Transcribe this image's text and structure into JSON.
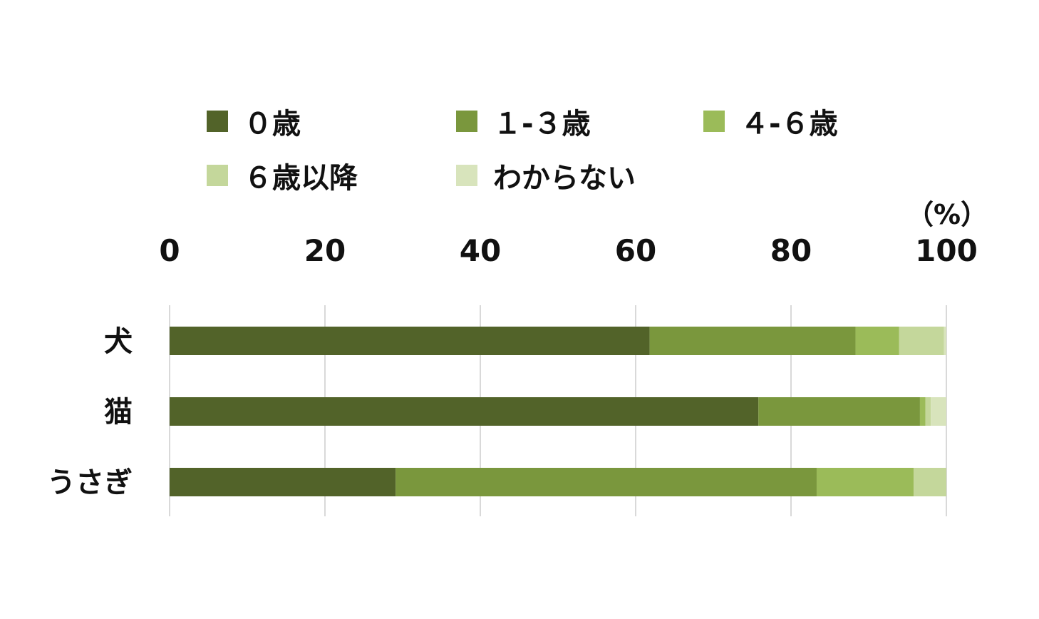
{
  "colors": {
    "series": [
      "#526329",
      "#7a973d",
      "#9bbb59",
      "#c4d79b",
      "#d8e4bc"
    ],
    "grid": "#d9d9d9"
  },
  "chart_data": {
    "type": "bar",
    "orientation": "horizontal",
    "stacked": true,
    "unit_label": "（%）",
    "categories": [
      "犬",
      "猫",
      "うさぎ"
    ],
    "series": [
      {
        "name": "０歳",
        "values": [
          61.8,
          75.8,
          29.1
        ]
      },
      {
        "name": "１-３歳",
        "values": [
          26.5,
          20.8,
          54.2
        ]
      },
      {
        "name": "４-６歳",
        "values": [
          5.6,
          0.7,
          12.5
        ]
      },
      {
        "name": "６歳以降",
        "values": [
          5.8,
          0.7,
          4.2
        ]
      },
      {
        "name": "わからない",
        "values": [
          0.3,
          2.0,
          0.0
        ]
      }
    ],
    "xlim": [
      0,
      100
    ],
    "xticks": [
      "0",
      "20",
      "40",
      "60",
      "80",
      "100"
    ],
    "grid": true,
    "legend_position": "top"
  }
}
